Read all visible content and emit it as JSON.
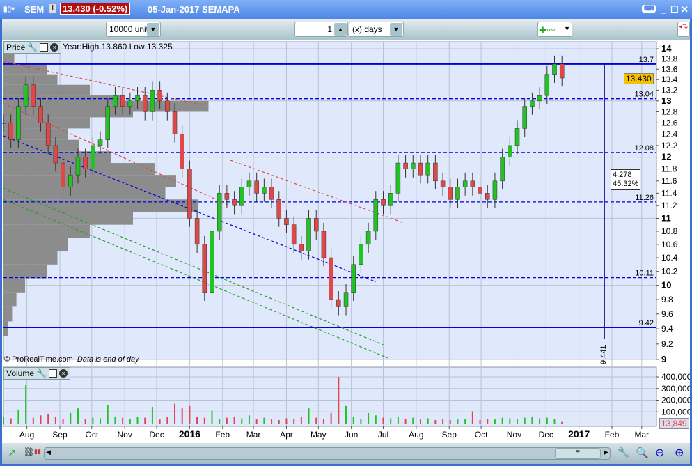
{
  "window": {
    "symbol": "SEM",
    "price_change": "13.430 (-0.52%)",
    "date_name": "05-Jan-2017 SEMAPA"
  },
  "toolbar": {
    "units": "10000 units",
    "period_value": "1",
    "period_unit": "(x) days"
  },
  "price_pane": {
    "label": "Price",
    "info": "Year:High 13.860 Low 13.325",
    "footer_copyright": "© ProRealTime.com",
    "footer_note": "Data is end of day",
    "current_price": "13.430"
  },
  "volume_pane": {
    "label": "Volume",
    "current_volume": "13,849"
  },
  "colors": {
    "up": "#22c322",
    "down": "#e04848",
    "hline": "#0000e0",
    "accent_price": "#f5c000",
    "pane_bg": "#e0e8fb"
  },
  "chart_data": [
    {
      "type": "candlestick",
      "scale": "log",
      "ylim": [
        9,
        14
      ],
      "yticks": [
        "9",
        "9.2",
        "9.4",
        "9.6",
        "9.8",
        "10",
        "10.2",
        "10.4",
        "10.6",
        "10.8",
        "11",
        "11.2",
        "11.4",
        "11.6",
        "11.8",
        "12",
        "12.2",
        "12.4",
        "12.6",
        "12.8",
        "13",
        "13.2",
        "13.4",
        "13.6",
        "13.8",
        "14"
      ],
      "xticks": [
        {
          "label": "Aug",
          "date": "2015-08-01"
        },
        {
          "label": "Sep",
          "date": "2015-09-01"
        },
        {
          "label": "Oct",
          "date": "2015-10-01"
        },
        {
          "label": "Nov",
          "date": "2015-11-01"
        },
        {
          "label": "Dec",
          "date": "2015-12-01"
        },
        {
          "label": "2016",
          "date": "2016-01-01",
          "bold": true
        },
        {
          "label": "Feb",
          "date": "2016-02-01"
        },
        {
          "label": "Mar",
          "date": "2016-03-01"
        },
        {
          "label": "Apr",
          "date": "2016-04-01"
        },
        {
          "label": "May",
          "date": "2016-05-01"
        },
        {
          "label": "Jun",
          "date": "2016-06-01"
        },
        {
          "label": "Jul",
          "date": "2016-07-01"
        },
        {
          "label": "Aug",
          "date": "2016-08-01"
        },
        {
          "label": "Sep",
          "date": "2016-09-01"
        },
        {
          "label": "Oct",
          "date": "2016-10-01"
        },
        {
          "label": "Nov",
          "date": "2016-11-01"
        },
        {
          "label": "Dec",
          "date": "2016-12-01"
        },
        {
          "label": "2017",
          "date": "2017-01-01",
          "bold": true
        },
        {
          "label": "Feb",
          "date": "2017-02-01"
        },
        {
          "label": "Mar",
          "date": "2017-03-01"
        }
      ],
      "weekly_start": "2015-07-10",
      "weekly_closes": [
        12.6,
        12.3,
        12.9,
        13.3,
        12.9,
        12.6,
        12.2,
        11.9,
        11.5,
        11.7,
        12.0,
        11.8,
        12.2,
        12.3,
        12.9,
        13.1,
        12.9,
        13.0,
        13.1,
        12.8,
        13.2,
        13.0,
        12.8,
        12.4,
        11.8,
        11.0,
        10.6,
        9.9,
        10.8,
        11.4,
        11.3,
        11.2,
        11.5,
        11.6,
        11.4,
        11.5,
        11.3,
        11.0,
        10.9,
        10.6,
        10.5,
        11.0,
        10.8,
        10.4,
        9.8,
        9.7,
        9.9,
        10.3,
        10.6,
        10.8,
        11.3,
        11.2,
        11.4,
        11.9,
        11.8,
        11.9,
        11.7,
        11.9,
        11.6,
        11.5,
        11.3,
        11.5,
        11.6,
        11.5,
        11.4,
        11.3,
        11.6,
        12.0,
        12.2,
        12.5,
        12.9,
        13.0,
        13.1,
        13.5,
        13.7,
        13.43
      ],
      "horizontal_levels": [
        {
          "value": "13.7",
          "solid": true
        },
        {
          "value": "13.04"
        },
        {
          "value": "12.08"
        },
        {
          "value": "11.26"
        },
        {
          "value": "10.11"
        },
        {
          "value": "9.42",
          "solid": true
        }
      ],
      "measure": {
        "change": "4.278",
        "percent": "45.32%",
        "low": "9.441",
        "date": "2017-01-25",
        "from": 9.42,
        "to": 13.7
      },
      "trendlines": [
        {
          "color": "#e04848",
          "from": [
            "2015-07-10",
            13.75
          ],
          "to": [
            "2016-01-12",
            12.93
          ]
        },
        {
          "color": "#e04848",
          "from": [
            "2015-07-10",
            12.95
          ],
          "to": [
            "2016-02-08",
            11.2
          ]
        },
        {
          "color": "#e04848",
          "from": [
            "2016-02-08",
            11.95
          ],
          "to": [
            "2016-07-20",
            10.93
          ]
        },
        {
          "color": "#0000e0",
          "from": [
            "2015-07-10",
            12.37
          ],
          "to": [
            "2016-06-24",
            10.05
          ]
        },
        {
          "color": "#22a022",
          "from": [
            "2015-07-10",
            11.48
          ],
          "to": [
            "2016-07-01",
            9.19
          ]
        },
        {
          "color": "#22a022",
          "from": [
            "2015-07-10",
            11.3
          ],
          "to": [
            "2016-07-05",
            9.02
          ]
        }
      ],
      "volume_profile": [
        [
          13.8,
          0.05
        ],
        [
          13.6,
          0.2
        ],
        [
          13.4,
          0.25
        ],
        [
          13.2,
          0.4
        ],
        [
          13.0,
          0.55
        ],
        [
          12.9,
          0.95
        ],
        [
          12.8,
          0.6
        ],
        [
          12.6,
          0.4
        ],
        [
          12.4,
          0.3
        ],
        [
          12.2,
          0.35
        ],
        [
          12.0,
          0.5
        ],
        [
          11.8,
          0.7
        ],
        [
          11.6,
          0.8
        ],
        [
          11.4,
          0.75
        ],
        [
          11.2,
          0.9
        ],
        [
          11.0,
          0.6
        ],
        [
          10.8,
          0.4
        ],
        [
          10.6,
          0.3
        ],
        [
          10.4,
          0.25
        ],
        [
          10.2,
          0.2
        ],
        [
          10.0,
          0.1
        ],
        [
          9.8,
          0.06
        ],
        [
          9.6,
          0.04
        ],
        [
          9.4,
          0.02
        ]
      ]
    },
    {
      "type": "bar",
      "ylim": [
        0,
        400000
      ],
      "yticks": [
        "100,000",
        "200,000",
        "300,000",
        "400,000"
      ],
      "weekly_volumes": [
        60000,
        45000,
        120000,
        330000,
        50000,
        70000,
        80000,
        60000,
        40000,
        90000,
        130000,
        40000,
        50000,
        45000,
        160000,
        60000,
        50000,
        40000,
        60000,
        50000,
        140000,
        35000,
        55000,
        170000,
        130000,
        150000,
        60000,
        50000,
        110000,
        40000,
        50000,
        60000,
        45000,
        70000,
        35000,
        50000,
        40000,
        30000,
        45000,
        40000,
        60000,
        130000,
        50000,
        40000,
        90000,
        400000,
        150000,
        60000,
        40000,
        90000,
        70000,
        50000,
        45000,
        60000,
        40000,
        50000,
        35000,
        45000,
        30000,
        40000,
        30000,
        35000,
        40000,
        105000,
        30000,
        40000,
        35000,
        50000,
        45000,
        40000,
        50000,
        60000,
        45000,
        50000,
        40000,
        13849
      ]
    }
  ]
}
